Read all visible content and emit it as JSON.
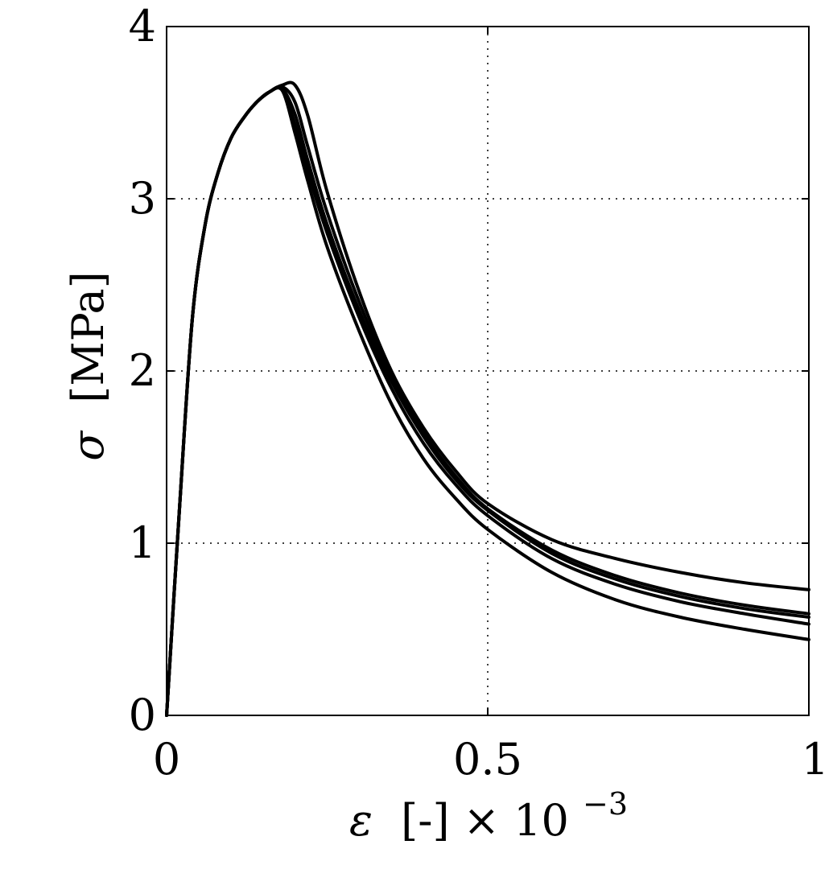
{
  "chart_data": {
    "type": "line",
    "title": "",
    "xlabel": {
      "symbol": "ε",
      "rest": "[-] × 10",
      "exponent": "−3"
    },
    "ylabel": {
      "symbol": "σ",
      "rest": "[MPa]"
    },
    "xlim": [
      0,
      1
    ],
    "ylim": [
      0,
      4
    ],
    "xticks": [
      0,
      0.5,
      1
    ],
    "xtick_labels": [
      "0",
      "0.5",
      "1"
    ],
    "yticks": [
      0,
      1,
      2,
      3,
      4
    ],
    "ytick_labels": [
      "0",
      "1",
      "2",
      "3",
      "4"
    ],
    "grid": true,
    "legend": "none",
    "line_color": "#000000",
    "series": [
      {
        "x": [
          0,
          0.02,
          0.04,
          0.06,
          0.08,
          0.1,
          0.12,
          0.14,
          0.16,
          0.18,
          0.2,
          0.22,
          0.25,
          0.3,
          0.35,
          0.4,
          0.45,
          0.5,
          0.6,
          0.7,
          0.8,
          0.9,
          1.0
        ],
        "y": [
          0,
          1.2,
          2.3,
          2.85,
          3.15,
          3.35,
          3.47,
          3.56,
          3.62,
          3.66,
          3.66,
          3.48,
          3.04,
          2.46,
          2.0,
          1.67,
          1.42,
          1.23,
          1.02,
          0.91,
          0.83,
          0.77,
          0.73
        ]
      },
      {
        "x": [
          0,
          0.02,
          0.04,
          0.06,
          0.08,
          0.1,
          0.12,
          0.14,
          0.16,
          0.18,
          0.2,
          0.22,
          0.25,
          0.3,
          0.35,
          0.4,
          0.45,
          0.5,
          0.6,
          0.7,
          0.8,
          0.9,
          1.0
        ],
        "y": [
          0,
          1.2,
          2.3,
          2.85,
          3.15,
          3.35,
          3.47,
          3.56,
          3.62,
          3.65,
          3.56,
          3.3,
          2.92,
          2.4,
          1.97,
          1.64,
          1.39,
          1.2,
          0.96,
          0.81,
          0.71,
          0.64,
          0.59
        ]
      },
      {
        "x": [
          0,
          0.02,
          0.04,
          0.06,
          0.08,
          0.1,
          0.12,
          0.14,
          0.16,
          0.18,
          0.2,
          0.22,
          0.25,
          0.3,
          0.35,
          0.4,
          0.45,
          0.5,
          0.6,
          0.7,
          0.8,
          0.9,
          1.0
        ],
        "y": [
          0,
          1.2,
          2.3,
          2.85,
          3.15,
          3.35,
          3.47,
          3.56,
          3.62,
          3.64,
          3.49,
          3.22,
          2.85,
          2.35,
          1.94,
          1.62,
          1.37,
          1.19,
          0.94,
          0.79,
          0.69,
          0.62,
          0.57
        ]
      },
      {
        "x": [
          0,
          0.02,
          0.04,
          0.06,
          0.08,
          0.1,
          0.12,
          0.14,
          0.16,
          0.18,
          0.2,
          0.22,
          0.25,
          0.3,
          0.35,
          0.4,
          0.45,
          0.5,
          0.6,
          0.7,
          0.8,
          0.9,
          1.0
        ],
        "y": [
          0,
          1.2,
          2.3,
          2.85,
          3.15,
          3.35,
          3.47,
          3.56,
          3.62,
          3.63,
          3.43,
          3.16,
          2.8,
          2.31,
          1.9,
          1.58,
          1.34,
          1.16,
          0.91,
          0.76,
          0.66,
          0.59,
          0.53
        ]
      },
      {
        "x": [
          0,
          0.02,
          0.04,
          0.06,
          0.08,
          0.1,
          0.12,
          0.14,
          0.16,
          0.18,
          0.2,
          0.22,
          0.25,
          0.3,
          0.35,
          0.4,
          0.45,
          0.5,
          0.6,
          0.7,
          0.8,
          0.9,
          1.0
        ],
        "y": [
          0,
          1.2,
          2.3,
          2.85,
          3.15,
          3.35,
          3.47,
          3.56,
          3.62,
          3.63,
          3.38,
          3.1,
          2.72,
          2.23,
          1.81,
          1.49,
          1.26,
          1.08,
          0.83,
          0.67,
          0.57,
          0.5,
          0.44
        ]
      }
    ]
  }
}
